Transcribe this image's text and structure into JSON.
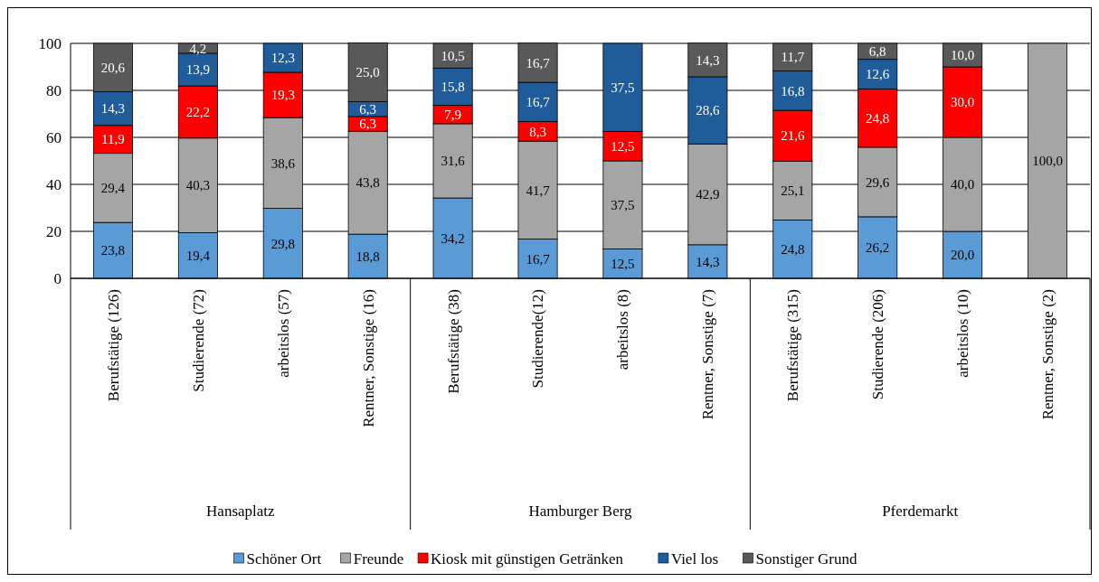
{
  "chart_data": {
    "type": "bar",
    "stacked": true,
    "categories": [
      "Berufstätige (126)",
      "Studierende (72)",
      "arbeitslos (57)",
      "Rentner, Sonstige (16)",
      "Berufstätige (38)",
      "Studierende(12)",
      "arbeitslos (8)",
      "Rentner, Sonstige (7)",
      "Berufstätige (315)",
      "Studierende (206)",
      "arbeitslos (10)",
      "Rentner, Sonstige (2)"
    ],
    "series": [
      {
        "name": "Schöner Ort",
        "color": "#5b9bd5",
        "values": [
          23.8,
          19.4,
          29.8,
          18.8,
          34.2,
          16.7,
          12.5,
          14.3,
          24.8,
          26.2,
          20.0,
          null
        ],
        "value_labels": [
          "23,8",
          "19,4",
          "29,8",
          "18,8",
          "34,2",
          "16,7",
          "12,5",
          "14,3",
          "24,8",
          "26,2",
          "20,0",
          null
        ]
      },
      {
        "name": "Freunde",
        "color": "#a5a5a5",
        "values": [
          29.4,
          40.3,
          38.6,
          43.8,
          31.6,
          41.7,
          37.5,
          42.9,
          25.1,
          29.6,
          40.0,
          100.0
        ],
        "value_labels": [
          "29,4",
          "40,3",
          "38,6",
          "43,8",
          "31,6",
          "41,7",
          "37,5",
          "42,9",
          "25,1",
          "29,6",
          "40,0",
          "100,0"
        ]
      },
      {
        "name": "Kiosk mit günstigen Getränken",
        "color": "#ff0000",
        "values": [
          11.9,
          22.2,
          19.3,
          6.3,
          7.9,
          8.3,
          12.5,
          null,
          21.6,
          24.8,
          30.0,
          null
        ],
        "value_labels": [
          "11,9",
          "22,2",
          "19,3",
          "6,3",
          "7,9",
          "8,3",
          "12,5",
          null,
          "21,6",
          "24,8",
          "30,0",
          null
        ]
      },
      {
        "name": "Viel los",
        "color": "#1f5c99",
        "values": [
          14.3,
          13.9,
          12.3,
          6.3,
          15.8,
          16.7,
          37.5,
          28.6,
          16.8,
          12.6,
          null,
          null
        ],
        "value_labels": [
          "14,3",
          "13,9",
          "12,3",
          "6,3",
          "15,8",
          "16,7",
          "37,5",
          "28,6",
          "16,8",
          "12,6",
          null,
          null
        ]
      },
      {
        "name": "Sonstiger Grund",
        "color": "#595959",
        "values": [
          20.6,
          4.2,
          null,
          25.0,
          10.5,
          16.7,
          null,
          14.3,
          11.7,
          6.8,
          10.0,
          null
        ],
        "value_labels": [
          "20,6",
          "4,2",
          null,
          "25,0",
          "10,5",
          "16,7",
          null,
          "14,3",
          "11,7",
          "6,8",
          "10,0",
          null
        ]
      }
    ],
    "annotations": [
      "Hansaplatz",
      "Hamburger Berg",
      "Pferdemarkt"
    ],
    "ylim": [
      0,
      100
    ],
    "yticks": [
      0,
      20,
      40,
      60,
      80,
      100
    ],
    "grid": "y",
    "legend": "bottom"
  }
}
